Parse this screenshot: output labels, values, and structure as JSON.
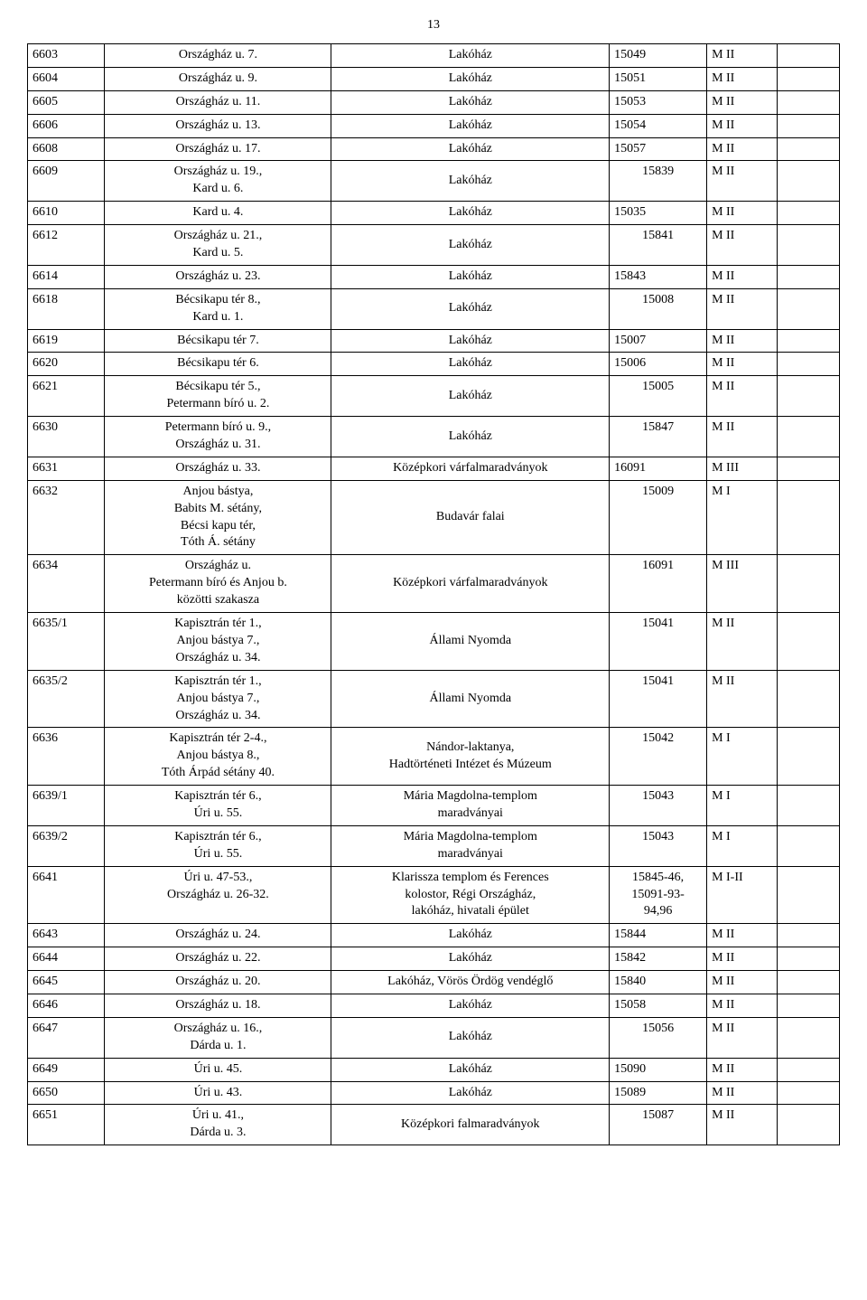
{
  "page_number": "13",
  "columns": [
    "c1",
    "c2",
    "c3",
    "c4",
    "c5",
    "c6"
  ],
  "rows": [
    {
      "c1": "6603",
      "c2": "Országház u. 7.",
      "c3": "Lakóház",
      "c4": "15049",
      "c5": "M II",
      "c6": ""
    },
    {
      "c1": "6604",
      "c2": "Országház u. 9.",
      "c3": "Lakóház",
      "c4": "15051",
      "c5": "M II",
      "c6": ""
    },
    {
      "c1": "6605",
      "c2": "Országház u. 11.",
      "c3": "Lakóház",
      "c4": "15053",
      "c5": "M II",
      "c6": ""
    },
    {
      "c1": "6606",
      "c2": "Országház u. 13.",
      "c3": "Lakóház",
      "c4": "15054",
      "c5": "M II",
      "c6": ""
    },
    {
      "c1": "6608",
      "c2": "Országház u. 17.",
      "c3": "Lakóház",
      "c4": "15057",
      "c5": "M II",
      "c6": ""
    },
    {
      "c1": "6609",
      "c2": "Országház u. 19.,\nKard u. 6.",
      "c3": "Lakóház",
      "c4": "15839",
      "c5": "M II",
      "c6": ""
    },
    {
      "c1": "6610",
      "c2": "Kard u. 4.",
      "c3": "Lakóház",
      "c4": "15035",
      "c5": "M II",
      "c6": ""
    },
    {
      "c1": "6612",
      "c2": "Országház u. 21.,\nKard u. 5.",
      "c3": "Lakóház",
      "c4": "15841",
      "c5": "M II",
      "c6": ""
    },
    {
      "c1": "6614",
      "c2": "Országház u. 23.",
      "c3": "Lakóház",
      "c4": "15843",
      "c5": "M II",
      "c6": ""
    },
    {
      "c1": "6618",
      "c2": "Bécsikapu tér 8.,\nKard u. 1.",
      "c3": "Lakóház",
      "c4": "15008",
      "c5": "M II",
      "c6": ""
    },
    {
      "c1": "6619",
      "c2": "Bécsikapu tér 7.",
      "c3": "Lakóház",
      "c4": "15007",
      "c5": "M II",
      "c6": ""
    },
    {
      "c1": "6620",
      "c2": "Bécsikapu tér 6.",
      "c3": "Lakóház",
      "c4": "15006",
      "c5": "M II",
      "c6": ""
    },
    {
      "c1": "6621",
      "c2": "Bécsikapu tér 5.,\nPetermann bíró u. 2.",
      "c3": "Lakóház",
      "c4": "15005",
      "c5": "M II",
      "c6": ""
    },
    {
      "c1": "6630",
      "c2": "Petermann bíró u. 9.,\nOrszágház u. 31.",
      "c3": "Lakóház",
      "c4": "15847",
      "c5": "M II",
      "c6": ""
    },
    {
      "c1": "6631",
      "c2": "Országház u. 33.",
      "c3": "Középkori várfalmaradványok",
      "c4": "16091",
      "c5": "M III",
      "c6": ""
    },
    {
      "c1": "6632",
      "c2": "Anjou bástya,\nBabits M. sétány,\nBécsi kapu tér,\nTóth Á. sétány",
      "c3": "Budavár falai",
      "c4": "15009",
      "c5": "M I",
      "c6": ""
    },
    {
      "c1": "6634",
      "c2": "Országház u.\nPetermann bíró és Anjou b.\nközötti szakasza",
      "c3": "Középkori várfalmaradványok",
      "c4": "16091",
      "c5": "M III",
      "c6": ""
    },
    {
      "c1": "6635/1",
      "c2": "Kapisztrán tér 1.,\nAnjou bástya 7.,\nOrszágház u. 34.",
      "c3": "Állami Nyomda",
      "c4": "15041",
      "c5": "M II",
      "c6": ""
    },
    {
      "c1": "6635/2",
      "c2": "Kapisztrán tér 1.,\nAnjou bástya 7.,\nOrszágház u. 34.",
      "c3": "Állami Nyomda",
      "c4": "15041",
      "c5": "M II",
      "c6": ""
    },
    {
      "c1": "6636",
      "c2": "Kapisztrán tér 2-4.,\nAnjou bástya 8.,\nTóth Árpád sétány 40.",
      "c3": "Nándor-laktanya,\nHadtörténeti Intézet és Múzeum",
      "c4": "15042",
      "c5": "M I",
      "c6": ""
    },
    {
      "c1": "6639/1",
      "c2": "Kapisztrán tér 6.,\nÚri u. 55.",
      "c3": "Mária Magdolna-templom\nmaradványai",
      "c4": "15043",
      "c5": "M I",
      "c6": ""
    },
    {
      "c1": "6639/2",
      "c2": "Kapisztrán tér 6.,\nÚri u. 55.",
      "c3": "Mária Magdolna-templom\nmaradványai",
      "c4": "15043",
      "c5": "M I",
      "c6": ""
    },
    {
      "c1": "6641",
      "c2": "Úri u. 47-53.,\nOrszágház u. 26-32.",
      "c3": "Klarissza templom és Ferences\nkolostor, Régi Országház,\nlakóház, hivatali épület",
      "c4": "15845-46,\n15091-93-\n94,96",
      "c5": "M I-II",
      "c6": ""
    },
    {
      "c1": "6643",
      "c2": "Országház u. 24.",
      "c3": "Lakóház",
      "c4": "15844",
      "c5": "M II",
      "c6": ""
    },
    {
      "c1": "6644",
      "c2": "Országház u. 22.",
      "c3": "Lakóház",
      "c4": "15842",
      "c5": "M II",
      "c6": ""
    },
    {
      "c1": "6645",
      "c2": "Országház u. 20.",
      "c3": "Lakóház, Vörös Ördög vendéglő",
      "c4": "15840",
      "c5": "M II",
      "c6": ""
    },
    {
      "c1": "6646",
      "c2": "Országház u. 18.",
      "c3": "Lakóház",
      "c4": "15058",
      "c5": "M II",
      "c6": ""
    },
    {
      "c1": "6647",
      "c2": "Országház u. 16.,\nDárda u. 1.",
      "c3": "Lakóház",
      "c4": "15056",
      "c5": "M II",
      "c6": ""
    },
    {
      "c1": "6649",
      "c2": "Úri u. 45.",
      "c3": "Lakóház",
      "c4": "15090",
      "c5": "M II",
      "c6": ""
    },
    {
      "c1": "6650",
      "c2": "Úri u. 43.",
      "c3": "Lakóház",
      "c4": "15089",
      "c5": "M II",
      "c6": ""
    },
    {
      "c1": "6651",
      "c2": "Úri u. 41.,\nDárda u. 3.",
      "c3": "Középkori falmaradványok",
      "c4": "15087",
      "c5": "M II",
      "c6": ""
    }
  ]
}
